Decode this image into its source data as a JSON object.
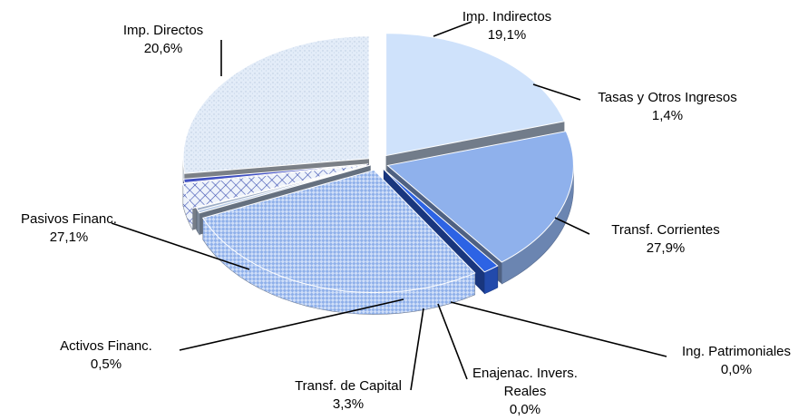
{
  "chart_data": {
    "type": "pie",
    "style": "3d-exploded",
    "slices": [
      {
        "label_lines": [
          "Imp. Directos"
        ],
        "value_text": "20,6%",
        "value": 20.6,
        "color": "#cfe2fb",
        "pattern": "solid"
      },
      {
        "label_lines": [
          "Imp. Indirectos"
        ],
        "value_text": "19,1%",
        "value": 19.1,
        "color": "#8fb1ec",
        "pattern": "solid"
      },
      {
        "label_lines": [
          "Tasas y Otros Ingresos"
        ],
        "value_text": "1,4%",
        "value": 1.4,
        "color": "#2d63e4",
        "pattern": "solid"
      },
      {
        "label_lines": [
          "Transf. Corrientes"
        ],
        "value_text": "27,9%",
        "value": 27.9,
        "color": "#b9cff5",
        "pattern": "checker"
      },
      {
        "label_lines": [
          "Ing. Patrimoniales"
        ],
        "value_text": "0,0%",
        "value": 0.0,
        "color": "#b8cbe6",
        "pattern": "solid"
      },
      {
        "label_lines": [
          "Enajenac. Invers.",
          "Reales"
        ],
        "value_text": "0,0%",
        "value": 0.0,
        "color": "#9aabc4",
        "pattern": "solid"
      },
      {
        "label_lines": [
          "Transf. de Capital"
        ],
        "value_text": "3,3%",
        "value": 3.3,
        "color": "#d7e4f7",
        "pattern": "crosshatch"
      },
      {
        "label_lines": [
          "Activos Financ."
        ],
        "value_text": "0,5%",
        "value": 0.5,
        "color": "#3f4fc2",
        "pattern": "solid"
      },
      {
        "label_lines": [
          "Pasivos Financ."
        ],
        "value_text": "27,1%",
        "value": 27.1,
        "color": "#dfe9f6",
        "pattern": "speckle"
      }
    ]
  }
}
